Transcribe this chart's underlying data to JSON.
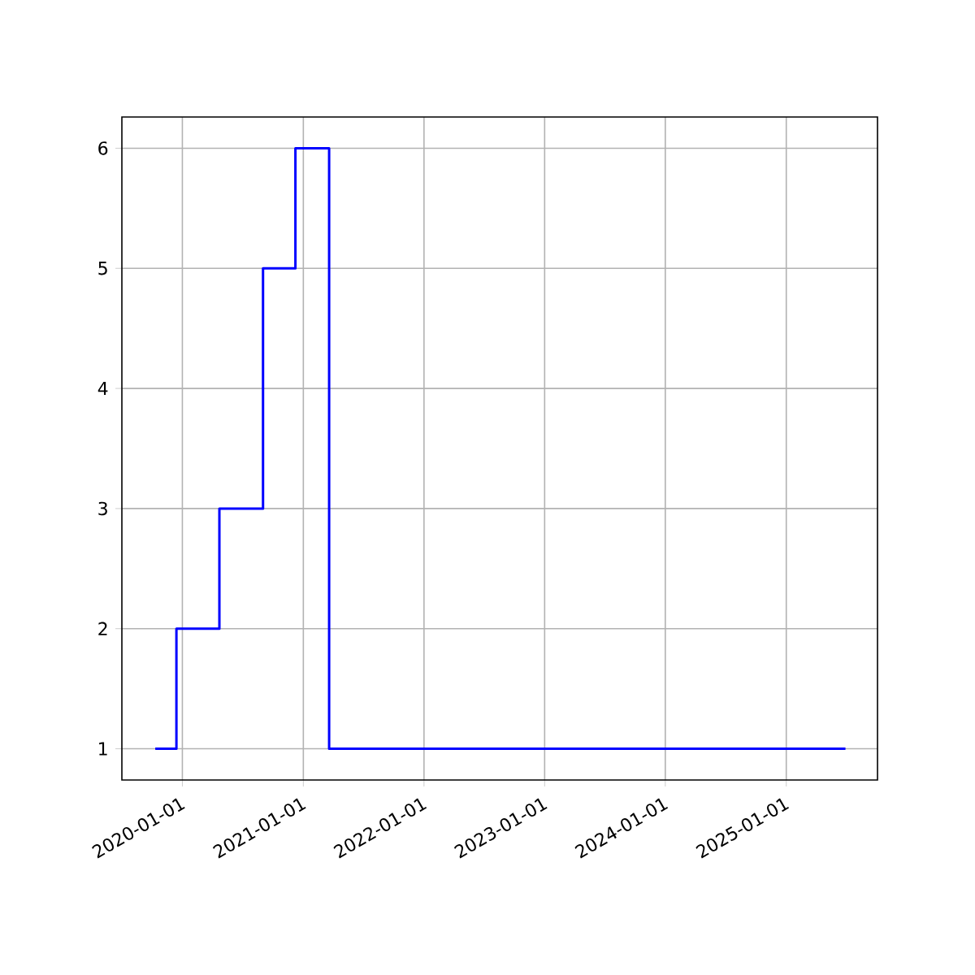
{
  "chart_data": {
    "type": "step",
    "x": [
      "2019-10-11",
      "2019-12-14",
      "2020-04-22",
      "2020-09-01",
      "2020-12-08",
      "2021-03-20",
      "2025-06-29"
    ],
    "values": [
      1,
      2,
      3,
      5,
      6,
      1,
      1
    ],
    "color": "#0000ff",
    "xlim": [
      "2019-07-02",
      "2025-10-04"
    ],
    "xticks": [
      "2020-01-01",
      "2021-01-01",
      "2022-01-01",
      "2023-01-01",
      "2024-01-01",
      "2025-01-01"
    ],
    "ylim": [
      0.74,
      6.26
    ],
    "yticks": [
      1,
      2,
      3,
      4,
      5,
      6
    ],
    "grid": true
  }
}
